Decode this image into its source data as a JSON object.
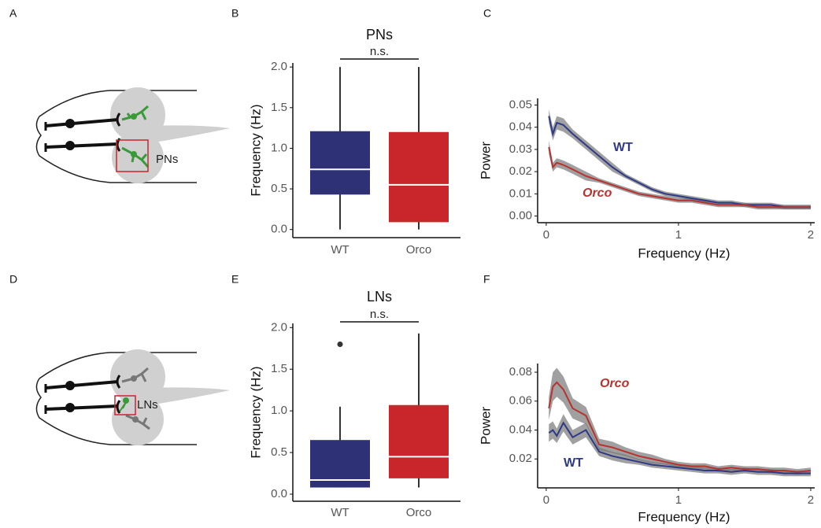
{
  "panels": [
    "A",
    "B",
    "C",
    "D",
    "E",
    "F"
  ],
  "diagrams": [
    {
      "label": "PNs"
    },
    {
      "label": "LNs"
    }
  ],
  "chart_data": [
    {
      "type": "box",
      "title": "PNs",
      "annotation": "n.s.",
      "y_label": "Frequency (Hz)",
      "categories": [
        "WT",
        "Orco"
      ],
      "boxes": [
        {
          "color": "#2e3175",
          "whisker_low": 0.0,
          "q1": 0.43,
          "median": 0.74,
          "q3": 1.21,
          "whisker_high": 2.0,
          "outliers": []
        },
        {
          "color": "#c8262b",
          "whisker_low": 0.0,
          "q1": 0.09,
          "median": 0.55,
          "q3": 1.2,
          "whisker_high": 2.0,
          "outliers": []
        }
      ],
      "ylim": [
        -0.1,
        2.05
      ],
      "yticks": [
        {
          "value": 0,
          "label": "0.0"
        },
        0.5,
        {
          "value": 1,
          "label": "1.0"
        },
        1.5,
        {
          "value": 2,
          "label": "2.0"
        }
      ]
    },
    {
      "type": "line",
      "x_label": "Frequency (Hz)",
      "y_label": "Power",
      "x": [
        0.02,
        0.05,
        0.08,
        0.13,
        0.2,
        0.3,
        0.4,
        0.5,
        0.6,
        0.7,
        0.8,
        0.9,
        1.0,
        1.1,
        1.2,
        1.3,
        1.4,
        1.5,
        1.6,
        1.7,
        1.8,
        1.9,
        2.0
      ],
      "series": [
        {
          "name": "WT",
          "color": "#2e3a87",
          "values": [
            0.045,
            0.037,
            0.042,
            0.041,
            0.037,
            0.032,
            0.027,
            0.022,
            0.018,
            0.015,
            0.012,
            0.01,
            0.009,
            0.008,
            0.007,
            0.006,
            0.006,
            0.005,
            0.005,
            0.005,
            0.004,
            0.004,
            0.004
          ],
          "errors": [
            0.003,
            0.003,
            0.003,
            0.003,
            0.002,
            0.002,
            0.002,
            0.002,
            0.001,
            0.001,
            0.001,
            0.001,
            0.001,
            0.001,
            0.001,
            0.001,
            0.001,
            0.001,
            0.001,
            0.001,
            0.001,
            0.001,
            0.001
          ]
        },
        {
          "name": "Orco",
          "color": "#b8322f",
          "values": [
            0.031,
            0.022,
            0.024,
            0.023,
            0.021,
            0.018,
            0.016,
            0.014,
            0.012,
            0.01,
            0.009,
            0.008,
            0.007,
            0.007,
            0.006,
            0.005,
            0.005,
            0.005,
            0.004,
            0.004,
            0.004,
            0.004,
            0.004
          ],
          "errors": [
            0.003,
            0.002,
            0.002,
            0.002,
            0.002,
            0.002,
            0.001,
            0.001,
            0.001,
            0.001,
            0.001,
            0.001,
            0.001,
            0.001,
            0.001,
            0.001,
            0.001,
            0.001,
            0.001,
            0.001,
            0.001,
            0.001,
            0.001
          ]
        }
      ],
      "xlim": [
        -0.065,
        2.03
      ],
      "xticks": [
        0,
        1,
        2
      ],
      "ylim": [
        -0.003,
        0.053
      ],
      "yticks": [
        {
          "value": 0,
          "label": "0.00"
        },
        {
          "value": 0.01,
          "label": "0.01"
        },
        {
          "value": 0.02,
          "label": "0.02"
        },
        {
          "value": 0.03,
          "label": "0.03"
        },
        {
          "value": 0.04,
          "label": "0.04"
        },
        {
          "value": 0.05,
          "label": "0.05"
        }
      ]
    },
    {
      "type": "box",
      "title": "LNs",
      "annotation": "n.s.",
      "y_label": "Frequency (Hz)",
      "categories": [
        "WT",
        "Orco"
      ],
      "boxes": [
        {
          "color": "#2e3175",
          "whisker_low": 0.08,
          "q1": 0.08,
          "median": 0.17,
          "q3": 0.65,
          "whisker_high": 1.05,
          "outliers": [
            1.8
          ]
        },
        {
          "color": "#c8262b",
          "whisker_low": 0.08,
          "q1": 0.19,
          "median": 0.45,
          "q3": 1.07,
          "whisker_high": 1.93,
          "outliers": []
        }
      ],
      "ylim": [
        -0.085,
        2.05
      ],
      "yticks": [
        {
          "value": 0,
          "label": "0.0"
        },
        0.5,
        {
          "value": 1,
          "label": "1.0"
        },
        1.5,
        {
          "value": 2,
          "label": "2.0"
        }
      ]
    },
    {
      "type": "line",
      "x_label": "Frequency (Hz)",
      "y_label": "Power",
      "x": [
        0.02,
        0.05,
        0.08,
        0.13,
        0.2,
        0.3,
        0.4,
        0.5,
        0.6,
        0.7,
        0.8,
        0.9,
        1.0,
        1.1,
        1.2,
        1.3,
        1.4,
        1.5,
        1.6,
        1.7,
        1.8,
        1.9,
        2.0
      ],
      "series": [
        {
          "name": "Orco",
          "color": "#b8322f",
          "values": [
            0.055,
            0.07,
            0.073,
            0.068,
            0.055,
            0.05,
            0.03,
            0.028,
            0.025,
            0.022,
            0.02,
            0.018,
            0.016,
            0.015,
            0.015,
            0.013,
            0.014,
            0.013,
            0.013,
            0.012,
            0.012,
            0.011,
            0.012
          ],
          "errors": [
            0.008,
            0.01,
            0.01,
            0.009,
            0.007,
            0.006,
            0.004,
            0.004,
            0.003,
            0.003,
            0.003,
            0.002,
            0.002,
            0.002,
            0.002,
            0.002,
            0.002,
            0.002,
            0.002,
            0.002,
            0.002,
            0.002,
            0.002
          ]
        },
        {
          "name": "WT",
          "color": "#2e3a87",
          "values": [
            0.038,
            0.04,
            0.036,
            0.045,
            0.035,
            0.04,
            0.025,
            0.022,
            0.02,
            0.018,
            0.016,
            0.015,
            0.014,
            0.013,
            0.012,
            0.012,
            0.011,
            0.012,
            0.011,
            0.011,
            0.01,
            0.01,
            0.01
          ],
          "errors": [
            0.006,
            0.006,
            0.005,
            0.006,
            0.005,
            0.005,
            0.003,
            0.003,
            0.003,
            0.002,
            0.002,
            0.002,
            0.002,
            0.002,
            0.002,
            0.002,
            0.002,
            0.002,
            0.002,
            0.002,
            0.002,
            0.002,
            0.002
          ]
        }
      ],
      "xlim": [
        -0.065,
        2.03
      ],
      "xticks": [
        0,
        1,
        2
      ],
      "ylim": [
        0,
        0.086
      ],
      "yticks": [
        0.02,
        0.04,
        0.06,
        0.08
      ]
    }
  ]
}
